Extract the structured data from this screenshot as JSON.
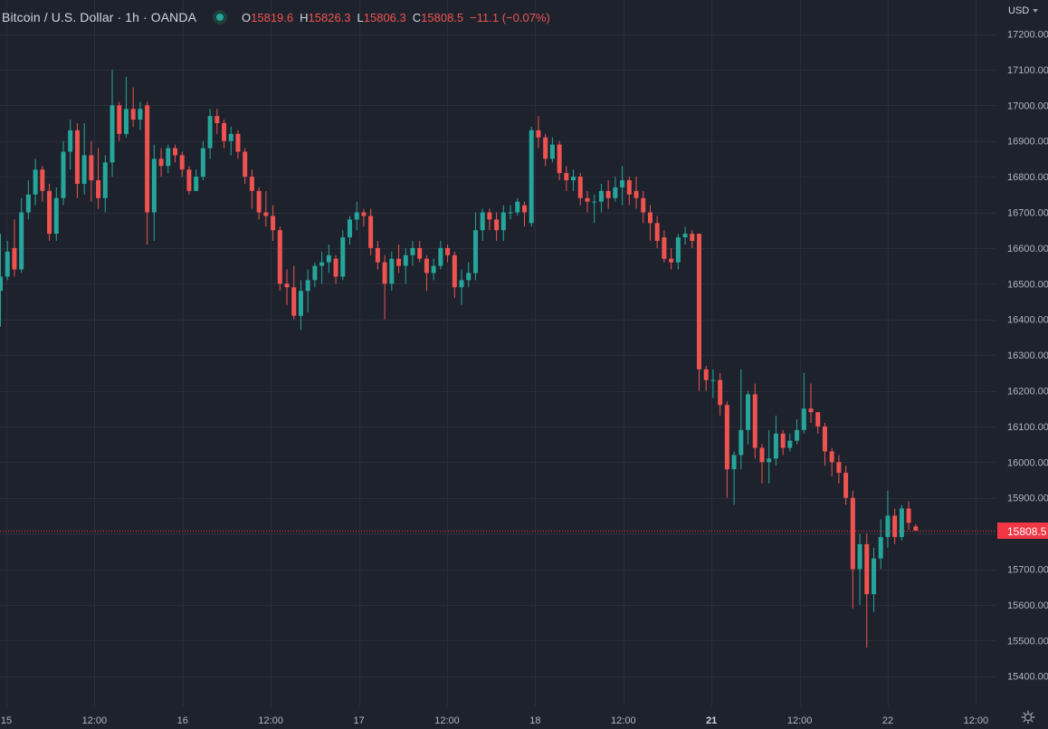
{
  "header": {
    "symbol": "Bitcoin / U.S. Dollar · 1h · OANDA",
    "open_key": "O",
    "open": "15819.6",
    "high_key": "H",
    "high": "15826.3",
    "low_key": "L",
    "low": "15806.3",
    "close_key": "C",
    "close": "15808.5",
    "change": "−11.1 (−0.07%)"
  },
  "currency": "USD",
  "settings_icon": "gear-icon",
  "market_status_icon": "market-open-dot-icon",
  "colors": {
    "background": "#1e222d",
    "grid": "#2a2e39",
    "up": "#26a69a",
    "down": "#ef5350",
    "text": "#b2b5be",
    "price_tag": "#f23645"
  },
  "chart_data": {
    "type": "candlestick",
    "title": "Bitcoin / U.S. Dollar · 1h · OANDA",
    "interval": "1h",
    "ylim": [
      15360,
      17250
    ],
    "y_ticks": [
      15400,
      15500,
      15600,
      15700,
      15800,
      15900,
      16000,
      16100,
      16200,
      16300,
      16400,
      16500,
      16600,
      16700,
      16800,
      16900,
      17000,
      17100,
      17200
    ],
    "x_ticks": [
      "15",
      "12:00",
      "16",
      "12:00",
      "17",
      "12:00",
      "18",
      "12:00",
      "21",
      "12:00",
      "22",
      "12:00"
    ],
    "x_tick_bold": [
      false,
      false,
      false,
      false,
      false,
      false,
      false,
      false,
      true,
      false,
      false,
      false
    ],
    "grid": true,
    "last_price": "15808.5",
    "candles": [
      {
        "o": 16480,
        "h": 16640,
        "l": 16380,
        "c": 16520
      },
      {
        "o": 16520,
        "h": 16620,
        "l": 16510,
        "c": 16590
      },
      {
        "o": 16600,
        "h": 16680,
        "l": 16520,
        "c": 16540
      },
      {
        "o": 16540,
        "h": 16740,
        "l": 16530,
        "c": 16700
      },
      {
        "o": 16700,
        "h": 16790,
        "l": 16680,
        "c": 16750
      },
      {
        "o": 16750,
        "h": 16850,
        "l": 16720,
        "c": 16820
      },
      {
        "o": 16820,
        "h": 16830,
        "l": 16730,
        "c": 16760
      },
      {
        "o": 16760,
        "h": 16780,
        "l": 16620,
        "c": 16640
      },
      {
        "o": 16640,
        "h": 16770,
        "l": 16620,
        "c": 16740
      },
      {
        "o": 16740,
        "h": 16900,
        "l": 16720,
        "c": 16870
      },
      {
        "o": 16870,
        "h": 16960,
        "l": 16820,
        "c": 16930
      },
      {
        "o": 16930,
        "h": 16950,
        "l": 16740,
        "c": 16780
      },
      {
        "o": 16780,
        "h": 16950,
        "l": 16750,
        "c": 16860
      },
      {
        "o": 16860,
        "h": 16900,
        "l": 16730,
        "c": 16790
      },
      {
        "o": 16790,
        "h": 16880,
        "l": 16710,
        "c": 16740
      },
      {
        "o": 16740,
        "h": 16860,
        "l": 16700,
        "c": 16840
      },
      {
        "o": 16840,
        "h": 17100,
        "l": 16800,
        "c": 17000
      },
      {
        "o": 17000,
        "h": 17010,
        "l": 16900,
        "c": 16920
      },
      {
        "o": 16920,
        "h": 17080,
        "l": 16910,
        "c": 16990
      },
      {
        "o": 16990,
        "h": 17050,
        "l": 16940,
        "c": 16960
      },
      {
        "o": 16960,
        "h": 17010,
        "l": 16930,
        "c": 16990
      },
      {
        "o": 17000,
        "h": 17010,
        "l": 16610,
        "c": 16700
      },
      {
        "o": 16700,
        "h": 16890,
        "l": 16620,
        "c": 16850
      },
      {
        "o": 16850,
        "h": 16880,
        "l": 16800,
        "c": 16830
      },
      {
        "o": 16830,
        "h": 16890,
        "l": 16810,
        "c": 16880
      },
      {
        "o": 16880,
        "h": 16890,
        "l": 16840,
        "c": 16860
      },
      {
        "o": 16860,
        "h": 16870,
        "l": 16800,
        "c": 16820
      },
      {
        "o": 16820,
        "h": 16830,
        "l": 16750,
        "c": 16760
      },
      {
        "o": 16760,
        "h": 16820,
        "l": 16770,
        "c": 16800
      },
      {
        "o": 16800,
        "h": 16900,
        "l": 16790,
        "c": 16880
      },
      {
        "o": 16880,
        "h": 16990,
        "l": 16850,
        "c": 16970
      },
      {
        "o": 16970,
        "h": 16990,
        "l": 16920,
        "c": 16950
      },
      {
        "o": 16950,
        "h": 16960,
        "l": 16880,
        "c": 16900
      },
      {
        "o": 16900,
        "h": 16940,
        "l": 16860,
        "c": 16920
      },
      {
        "o": 16920,
        "h": 16930,
        "l": 16850,
        "c": 16870
      },
      {
        "o": 16870,
        "h": 16880,
        "l": 16780,
        "c": 16800
      },
      {
        "o": 16800,
        "h": 16820,
        "l": 16710,
        "c": 16760
      },
      {
        "o": 16760,
        "h": 16770,
        "l": 16680,
        "c": 16700
      },
      {
        "o": 16700,
        "h": 16760,
        "l": 16660,
        "c": 16690
      },
      {
        "o": 16690,
        "h": 16720,
        "l": 16620,
        "c": 16650
      },
      {
        "o": 16650,
        "h": 16660,
        "l": 16480,
        "c": 16500
      },
      {
        "o": 16500,
        "h": 16540,
        "l": 16440,
        "c": 16490
      },
      {
        "o": 16490,
        "h": 16550,
        "l": 16400,
        "c": 16410
      },
      {
        "o": 16410,
        "h": 16510,
        "l": 16370,
        "c": 16480
      },
      {
        "o": 16480,
        "h": 16540,
        "l": 16420,
        "c": 16510
      },
      {
        "o": 16510,
        "h": 16560,
        "l": 16490,
        "c": 16550
      },
      {
        "o": 16550,
        "h": 16590,
        "l": 16500,
        "c": 16560
      },
      {
        "o": 16560,
        "h": 16610,
        "l": 16530,
        "c": 16580
      },
      {
        "o": 16570,
        "h": 16580,
        "l": 16500,
        "c": 16520
      },
      {
        "o": 16520,
        "h": 16650,
        "l": 16510,
        "c": 16630
      },
      {
        "o": 16630,
        "h": 16690,
        "l": 16610,
        "c": 16680
      },
      {
        "o": 16680,
        "h": 16730,
        "l": 16650,
        "c": 16700
      },
      {
        "o": 16700,
        "h": 16710,
        "l": 16660,
        "c": 16690
      },
      {
        "o": 16690,
        "h": 16710,
        "l": 16580,
        "c": 16600
      },
      {
        "o": 16600,
        "h": 16620,
        "l": 16540,
        "c": 16560
      },
      {
        "o": 16560,
        "h": 16580,
        "l": 16400,
        "c": 16500
      },
      {
        "o": 16500,
        "h": 16590,
        "l": 16480,
        "c": 16570
      },
      {
        "o": 16570,
        "h": 16610,
        "l": 16530,
        "c": 16550
      },
      {
        "o": 16550,
        "h": 16600,
        "l": 16500,
        "c": 16580
      },
      {
        "o": 16580,
        "h": 16620,
        "l": 16550,
        "c": 16600
      },
      {
        "o": 16600,
        "h": 16620,
        "l": 16560,
        "c": 16570
      },
      {
        "o": 16570,
        "h": 16580,
        "l": 16480,
        "c": 16530
      },
      {
        "o": 16530,
        "h": 16570,
        "l": 16510,
        "c": 16550
      },
      {
        "o": 16550,
        "h": 16620,
        "l": 16540,
        "c": 16600
      },
      {
        "o": 16600,
        "h": 16610,
        "l": 16560,
        "c": 16580
      },
      {
        "o": 16580,
        "h": 16590,
        "l": 16460,
        "c": 16490
      },
      {
        "o": 16490,
        "h": 16540,
        "l": 16440,
        "c": 16510
      },
      {
        "o": 16510,
        "h": 16560,
        "l": 16490,
        "c": 16530
      },
      {
        "o": 16530,
        "h": 16700,
        "l": 16510,
        "c": 16650
      },
      {
        "o": 16650,
        "h": 16710,
        "l": 16620,
        "c": 16700
      },
      {
        "o": 16700,
        "h": 16710,
        "l": 16650,
        "c": 16680
      },
      {
        "o": 16680,
        "h": 16700,
        "l": 16620,
        "c": 16650
      },
      {
        "o": 16650,
        "h": 16720,
        "l": 16620,
        "c": 16700
      },
      {
        "o": 16700,
        "h": 16720,
        "l": 16680,
        "c": 16700
      },
      {
        "o": 16700,
        "h": 16740,
        "l": 16690,
        "c": 16730
      },
      {
        "o": 16720,
        "h": 16730,
        "l": 16660,
        "c": 16700
      },
      {
        "o": 16670,
        "h": 16940,
        "l": 16660,
        "c": 16930
      },
      {
        "o": 16930,
        "h": 16970,
        "l": 16880,
        "c": 16910
      },
      {
        "o": 16910,
        "h": 16920,
        "l": 16830,
        "c": 16850
      },
      {
        "o": 16850,
        "h": 16910,
        "l": 16840,
        "c": 16890
      },
      {
        "o": 16890,
        "h": 16900,
        "l": 16790,
        "c": 16810
      },
      {
        "o": 16810,
        "h": 16830,
        "l": 16760,
        "c": 16790
      },
      {
        "o": 16790,
        "h": 16820,
        "l": 16760,
        "c": 16800
      },
      {
        "o": 16800,
        "h": 16810,
        "l": 16720,
        "c": 16740
      },
      {
        "o": 16740,
        "h": 16760,
        "l": 16700,
        "c": 16730
      },
      {
        "o": 16730,
        "h": 16750,
        "l": 16670,
        "c": 16730
      },
      {
        "o": 16730,
        "h": 16780,
        "l": 16700,
        "c": 16760
      },
      {
        "o": 16760,
        "h": 16790,
        "l": 16710,
        "c": 16740
      },
      {
        "o": 16740,
        "h": 16800,
        "l": 16730,
        "c": 16770
      },
      {
        "o": 16770,
        "h": 16830,
        "l": 16720,
        "c": 16790
      },
      {
        "o": 16790,
        "h": 16800,
        "l": 16720,
        "c": 16750
      },
      {
        "o": 16760,
        "h": 16800,
        "l": 16710,
        "c": 16740
      },
      {
        "o": 16740,
        "h": 16760,
        "l": 16670,
        "c": 16700
      },
      {
        "o": 16700,
        "h": 16720,
        "l": 16620,
        "c": 16670
      },
      {
        "o": 16670,
        "h": 16690,
        "l": 16600,
        "c": 16620
      },
      {
        "o": 16630,
        "h": 16650,
        "l": 16560,
        "c": 16570
      },
      {
        "o": 16570,
        "h": 16600,
        "l": 16540,
        "c": 16560
      },
      {
        "o": 16560,
        "h": 16640,
        "l": 16540,
        "c": 16630
      },
      {
        "o": 16630,
        "h": 16660,
        "l": 16610,
        "c": 16640
      },
      {
        "o": 16640,
        "h": 16650,
        "l": 16600,
        "c": 16620
      },
      {
        "o": 16640,
        "h": 16640,
        "l": 16200,
        "c": 16260
      },
      {
        "o": 16260,
        "h": 16270,
        "l": 16200,
        "c": 16230
      },
      {
        "o": 16230,
        "h": 16260,
        "l": 16180,
        "c": 16230
      },
      {
        "o": 16230,
        "h": 16250,
        "l": 16130,
        "c": 16160
      },
      {
        "o": 16160,
        "h": 16170,
        "l": 15900,
        "c": 15980
      },
      {
        "o": 15980,
        "h": 16030,
        "l": 15880,
        "c": 16020
      },
      {
        "o": 16020,
        "h": 16260,
        "l": 15980,
        "c": 16090
      },
      {
        "o": 16090,
        "h": 16200,
        "l": 16050,
        "c": 16190
      },
      {
        "o": 16190,
        "h": 16220,
        "l": 16010,
        "c": 16040
      },
      {
        "o": 16040,
        "h": 16050,
        "l": 15940,
        "c": 16000
      },
      {
        "o": 16000,
        "h": 16090,
        "l": 15940,
        "c": 16010
      },
      {
        "o": 16010,
        "h": 16130,
        "l": 15990,
        "c": 16080
      },
      {
        "o": 16080,
        "h": 16090,
        "l": 16020,
        "c": 16040
      },
      {
        "o": 16040,
        "h": 16080,
        "l": 16030,
        "c": 16060
      },
      {
        "o": 16060,
        "h": 16120,
        "l": 16050,
        "c": 16090
      },
      {
        "o": 16090,
        "h": 16250,
        "l": 16080,
        "c": 16150
      },
      {
        "o": 16150,
        "h": 16220,
        "l": 16110,
        "c": 16140
      },
      {
        "o": 16140,
        "h": 16140,
        "l": 16080,
        "c": 16100
      },
      {
        "o": 16100,
        "h": 16110,
        "l": 15990,
        "c": 16030
      },
      {
        "o": 16030,
        "h": 16040,
        "l": 15960,
        "c": 16000
      },
      {
        "o": 16000,
        "h": 16020,
        "l": 15940,
        "c": 15970
      },
      {
        "o": 15970,
        "h": 15990,
        "l": 15880,
        "c": 15900
      },
      {
        "o": 15900,
        "h": 15920,
        "l": 15590,
        "c": 15700
      },
      {
        "o": 15700,
        "h": 15800,
        "l": 15600,
        "c": 15770
      },
      {
        "o": 15770,
        "h": 15800,
        "l": 15480,
        "c": 15630
      },
      {
        "o": 15630,
        "h": 15760,
        "l": 15580,
        "c": 15730
      },
      {
        "o": 15730,
        "h": 15840,
        "l": 15700,
        "c": 15790
      },
      {
        "o": 15790,
        "h": 15920,
        "l": 15760,
        "c": 15850
      },
      {
        "o": 15850,
        "h": 15870,
        "l": 15770,
        "c": 15790
      },
      {
        "o": 15790,
        "h": 15880,
        "l": 15780,
        "c": 15870
      },
      {
        "o": 15870,
        "h": 15890,
        "l": 15810,
        "c": 15830
      },
      {
        "o": 15819.6,
        "h": 15826.3,
        "l": 15806.3,
        "c": 15808.5
      }
    ]
  }
}
